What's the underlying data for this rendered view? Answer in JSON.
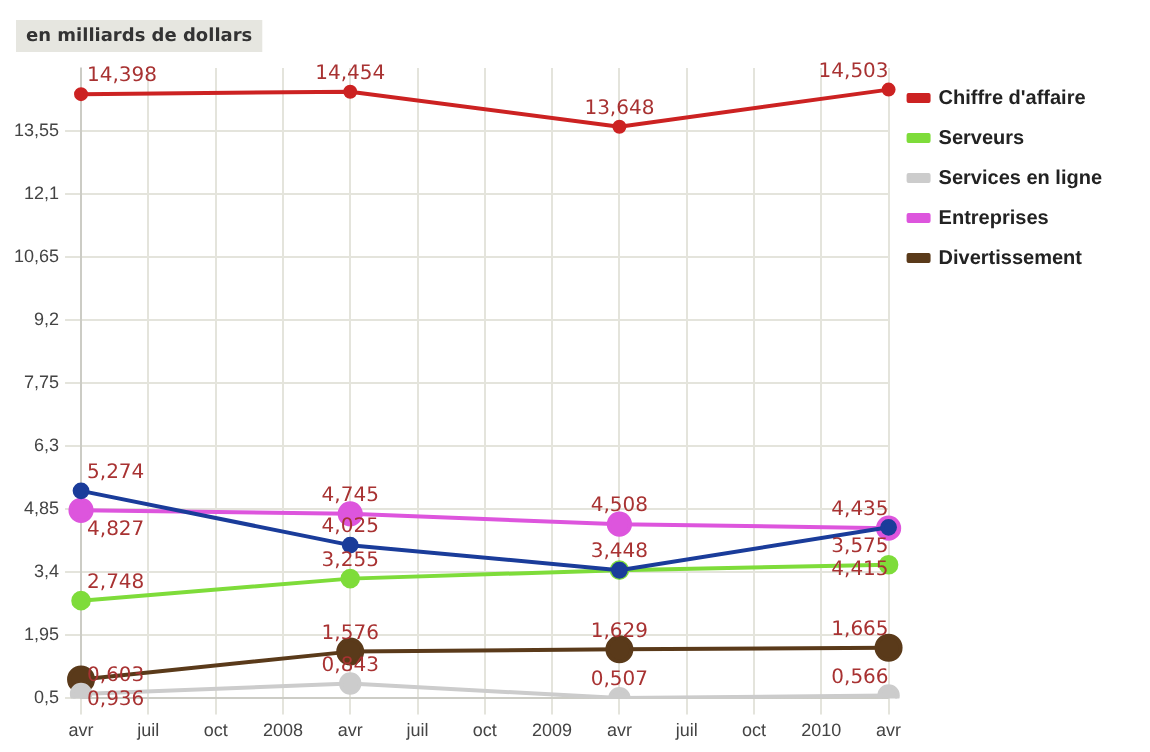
{
  "chart_data": {
    "type": "line",
    "ylabel": "en milliards de dollars",
    "categories": [
      "avr",
      "juil",
      "oct",
      "2008",
      "avr",
      "juil",
      "oct",
      "2009",
      "avr",
      "juil",
      "oct",
      "2010",
      "avr"
    ],
    "ylim": [
      0.5,
      15
    ],
    "yticks": [
      {
        "value": 0.5,
        "label": "0,5"
      },
      {
        "value": 1.95,
        "label": "1,95"
      },
      {
        "value": 3.4,
        "label": "3,4"
      },
      {
        "value": 4.85,
        "label": "4,85"
      },
      {
        "value": 6.3,
        "label": "6,3"
      },
      {
        "value": 7.75,
        "label": "7,75"
      },
      {
        "value": 9.2,
        "label": "9,2"
      },
      {
        "value": 10.65,
        "label": "10,65"
      },
      {
        "value": 12.1,
        "label": "12,1"
      },
      {
        "value": 13.55,
        "label": "13,55"
      }
    ],
    "grid": true,
    "legend": "top right",
    "marker": "circle",
    "line_style": "solid",
    "series": [
      {
        "name": "Chiffre d'affaire",
        "color": "#cc2222",
        "values": [
          14.398,
          null,
          null,
          null,
          14.454,
          null,
          null,
          null,
          13.648,
          null,
          null,
          null,
          14.503
        ],
        "value_labels": [
          "14,398",
          null,
          null,
          null,
          "14,454",
          null,
          null,
          null,
          "13,648",
          null,
          null,
          null,
          "14,503"
        ]
      },
      {
        "color": "#1a3c9a",
        "values": [
          5.274,
          null,
          null,
          null,
          4.025,
          null,
          null,
          null,
          3.448,
          null,
          null,
          null,
          4.435
        ],
        "value_labels": [
          "5,274",
          null,
          null,
          null,
          "4,025",
          null,
          null,
          null,
          "3,448",
          null,
          null,
          null,
          "4,435"
        ]
      },
      {
        "name": "Serveurs",
        "color": "#7edc3a",
        "values": [
          2.748,
          null,
          null,
          null,
          3.255,
          null,
          null,
          null,
          3.45,
          null,
          null,
          null,
          3.575
        ],
        "value_labels": [
          "2,748",
          null,
          null,
          null,
          "3,255",
          null,
          null,
          null,
          null,
          null,
          null,
          null,
          "3,575"
        ]
      },
      {
        "name": "Services en ligne",
        "color": "#cccccc",
        "values": [
          0.603,
          null,
          null,
          null,
          0.843,
          null,
          null,
          null,
          0.507,
          null,
          null,
          null,
          0.566
        ],
        "value_labels": [
          "0,603",
          null,
          null,
          null,
          "0,843",
          null,
          null,
          null,
          "0,507",
          null,
          null,
          null,
          "0,566"
        ]
      },
      {
        "name": "Entreprises",
        "color": "#dd55dd",
        "values": [
          4.827,
          null,
          null,
          null,
          4.745,
          null,
          null,
          null,
          4.508,
          null,
          null,
          null,
          4.415
        ],
        "value_labels": [
          "4,827",
          null,
          null,
          null,
          "4,745",
          null,
          null,
          null,
          "4,508",
          null,
          null,
          null,
          "4,415"
        ]
      },
      {
        "name": "Divertissement",
        "color": "#5a3a1a",
        "values": [
          0.936,
          null,
          null,
          null,
          1.576,
          null,
          null,
          null,
          1.629,
          null,
          null,
          null,
          1.665
        ],
        "value_labels": [
          "0,936",
          null,
          null,
          null,
          "1,576",
          null,
          null,
          null,
          "1,629",
          null,
          null,
          null,
          "1,665"
        ]
      }
    ]
  }
}
